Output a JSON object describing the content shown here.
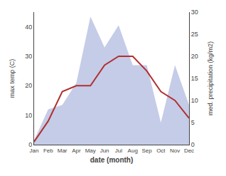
{
  "chart_data": {
    "type": "line",
    "categories": [
      "Jan",
      "Feb",
      "Mar",
      "Apr",
      "May",
      "Jun",
      "Jul",
      "Aug",
      "Sep",
      "Oct",
      "Nov",
      "Dec"
    ],
    "series": [
      {
        "type": "area",
        "axis": "y2",
        "color": "#c5cce8",
        "values": [
          1,
          8,
          9,
          14,
          29,
          22,
          27,
          18,
          18,
          5,
          18,
          9
        ]
      },
      {
        "type": "line",
        "color": "#b03030",
        "values": [
          1,
          8,
          18,
          20,
          20,
          27,
          30,
          30,
          25,
          18,
          15,
          9
        ]
      }
    ],
    "xlabel": "date (month)",
    "ylabel": "max temp (C)",
    "y2label": "med. precipitation (kg/m2)",
    "ylim": [
      0,
      45
    ],
    "yticks": [
      0,
      10,
      20,
      30,
      40
    ],
    "y2lim": [
      0,
      30
    ],
    "y2ticks": [
      0,
      5,
      10,
      15,
      20,
      25,
      30
    ],
    "grid": false
  }
}
